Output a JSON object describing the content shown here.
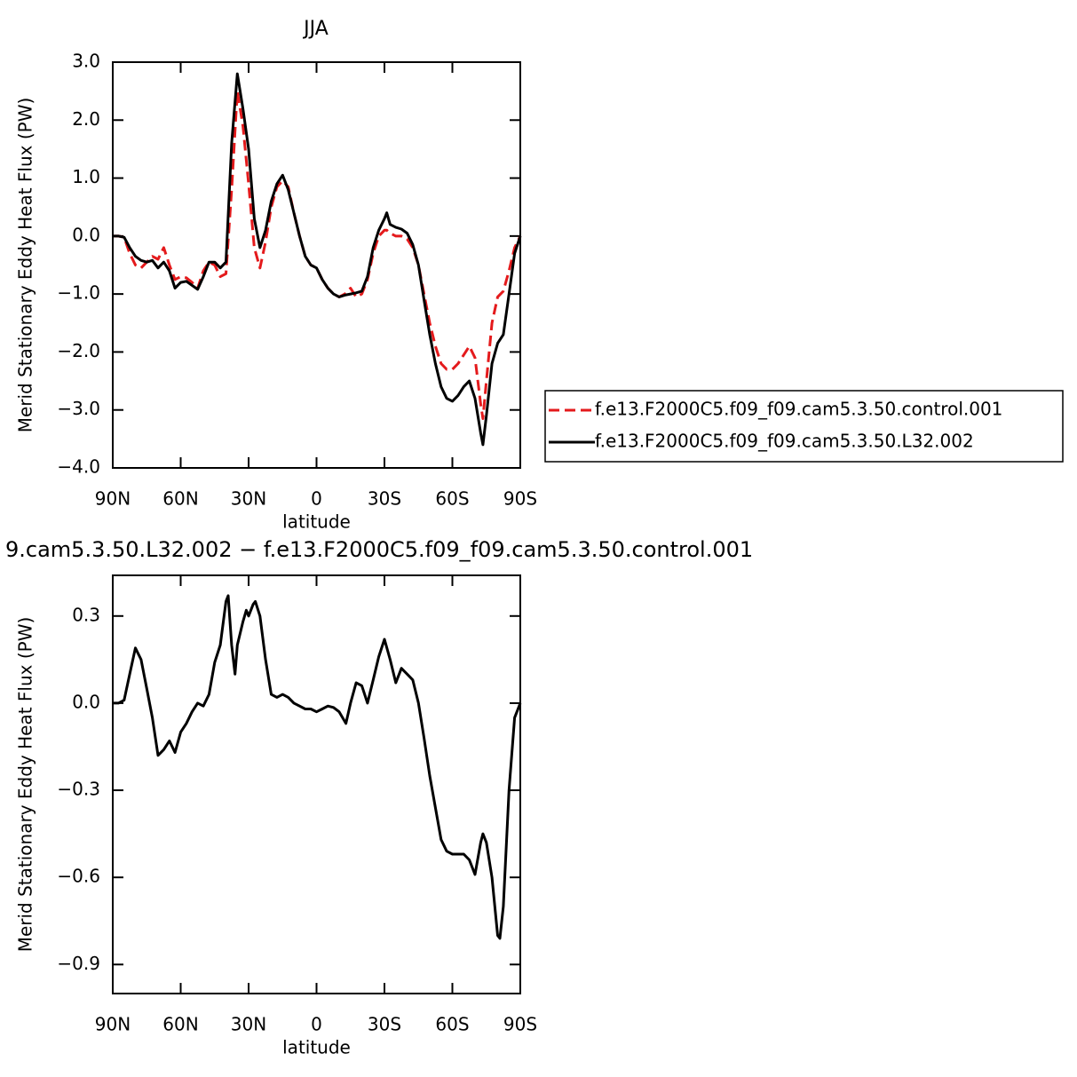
{
  "chart_data": [
    {
      "type": "line",
      "title": "JJA",
      "xlabel": "latitude",
      "ylabel": "Merid Stationary Eddy Heat Flux (PW)",
      "xlim": [
        90,
        -90
      ],
      "xticks": [
        {
          "value": 90,
          "label": "90N"
        },
        {
          "value": 60,
          "label": "60N"
        },
        {
          "value": 30,
          "label": "30N"
        },
        0,
        {
          "value": -30,
          "label": "30S"
        },
        {
          "value": -60,
          "label": "60S"
        },
        {
          "value": -90,
          "label": "90S"
        }
      ],
      "ylim": [
        -4,
        3
      ],
      "yticks": [
        {
          "value": 3,
          "label": "3.0"
        },
        {
          "value": 2,
          "label": "2.0"
        },
        {
          "value": 1,
          "label": "1.0"
        },
        {
          "value": 0,
          "label": "0.0"
        },
        {
          "value": -1,
          "label": "−1.0"
        },
        {
          "value": -2,
          "label": "−2.0"
        },
        {
          "value": -3,
          "label": "−3.0"
        },
        {
          "value": -4,
          "label": "−4.0"
        }
      ],
      "legend": "right",
      "x": [
        90,
        87.5,
        85,
        82.5,
        80,
        77.5,
        75,
        72.5,
        70,
        67.5,
        65,
        62.5,
        60,
        57.5,
        55,
        52.5,
        50,
        47.5,
        45,
        42.5,
        40,
        37.5,
        35,
        32.5,
        30,
        27.5,
        25,
        22.5,
        20,
        17.5,
        15,
        12.5,
        10,
        7.5,
        5,
        2.5,
        0,
        -2.5,
        -5,
        -7.5,
        -10,
        -12.5,
        -15,
        -17.5,
        -20,
        -22.5,
        -25,
        -27.5,
        -30,
        -31,
        -32.5,
        -35,
        -37.5,
        -40,
        -42.5,
        -45,
        -47.5,
        -50,
        -52.5,
        -55,
        -57.5,
        -60,
        -62.5,
        -65,
        -67.5,
        -70,
        -72.5,
        -73.5,
        -75,
        -77.5,
        -80,
        -82.5,
        -85,
        -87.5,
        -90
      ],
      "series": [
        {
          "name": "f.e13.F2000C5.f09_f09.cam5.3.50.control.001",
          "color": "#e41a1c",
          "linestyle": "dashed",
          "values": [
            0,
            0,
            -0.02,
            -0.3,
            -0.5,
            -0.55,
            -0.45,
            -0.35,
            -0.4,
            -0.2,
            -0.5,
            -0.75,
            -0.7,
            -0.72,
            -0.8,
            -0.9,
            -0.6,
            -0.45,
            -0.5,
            -0.7,
            -0.65,
            0.8,
            2.5,
            1.9,
            0.9,
            -0.2,
            -0.55,
            -0.1,
            0.5,
            0.85,
            0.95,
            0.85,
            0.4,
            0,
            -0.35,
            -0.5,
            -0.55,
            -0.75,
            -0.9,
            -1.0,
            -1.05,
            -1.0,
            -0.9,
            -1.05,
            -1.0,
            -0.75,
            -0.3,
            0.0,
            0.1,
            0.1,
            0.05,
            0.0,
            0.0,
            -0.05,
            -0.2,
            -0.5,
            -1.0,
            -1.5,
            -1.9,
            -2.2,
            -2.3,
            -2.3,
            -2.2,
            -2.05,
            -1.9,
            -2.1,
            -2.9,
            -3.15,
            -2.5,
            -1.5,
            -1.05,
            -0.95,
            -0.6,
            -0.2,
            0
          ]
        },
        {
          "name": "f.e13.F2000C5.f09_f09.cam5.3.50.L32.002",
          "color": "#000000",
          "linestyle": "solid",
          "values": [
            0,
            0,
            -0.02,
            -0.2,
            -0.35,
            -0.42,
            -0.45,
            -0.42,
            -0.55,
            -0.45,
            -0.6,
            -0.9,
            -0.8,
            -0.78,
            -0.85,
            -0.92,
            -0.7,
            -0.45,
            -0.45,
            -0.55,
            -0.45,
            1.6,
            2.8,
            2.2,
            1.5,
            0.3,
            -0.2,
            0.1,
            0.6,
            0.9,
            1.05,
            0.8,
            0.4,
            0.0,
            -0.35,
            -0.5,
            -0.55,
            -0.75,
            -0.9,
            -1.0,
            -1.05,
            -1.02,
            -1.0,
            -0.98,
            -0.95,
            -0.7,
            -0.2,
            0.1,
            0.3,
            0.4,
            0.2,
            0.15,
            0.12,
            0.05,
            -0.15,
            -0.5,
            -1.1,
            -1.7,
            -2.2,
            -2.6,
            -2.8,
            -2.85,
            -2.75,
            -2.6,
            -2.5,
            -2.8,
            -3.4,
            -3.6,
            -3.1,
            -2.2,
            -1.85,
            -1.7,
            -1.0,
            -0.3,
            0
          ]
        }
      ]
    },
    {
      "type": "line",
      "title": "9.cam5.3.50.L32.002 − f.e13.F2000C5.f09_f09.cam5.3.50.control.001",
      "xlabel": "latitude",
      "ylabel": "Merid Stationary Eddy Heat Flux (PW)",
      "xlim": [
        90,
        -90
      ],
      "xticks": [
        {
          "value": 90,
          "label": "90N"
        },
        {
          "value": 60,
          "label": "60N"
        },
        {
          "value": 30,
          "label": "30N"
        },
        0,
        {
          "value": -30,
          "label": "30S"
        },
        {
          "value": -60,
          "label": "60S"
        },
        {
          "value": -90,
          "label": "90S"
        }
      ],
      "ylim": [
        -1.0,
        0.44
      ],
      "yticks": [
        0.3,
        {
          "value": 0,
          "label": "0.0"
        },
        {
          "value": -0.3,
          "label": "−0.3"
        },
        {
          "value": -0.6,
          "label": "−0.6"
        },
        {
          "value": -0.9,
          "label": "−0.9"
        }
      ],
      "x": [
        90,
        87.5,
        85,
        82.5,
        80,
        77.5,
        75,
        72.5,
        70,
        67.5,
        65,
        62.5,
        60,
        57.5,
        55,
        52.5,
        50,
        47.5,
        45,
        42.5,
        40,
        39,
        37.5,
        36,
        35,
        32.5,
        31,
        30,
        28,
        27,
        25,
        22.5,
        20,
        17.5,
        15,
        12.5,
        10,
        7.5,
        5,
        2.5,
        0,
        -2.5,
        -5,
        -7.5,
        -10,
        -13,
        -15,
        -17.5,
        -20,
        -22.5,
        -25,
        -27.5,
        -30,
        -32.5,
        -35,
        -37.5,
        -40,
        -42.5,
        -45,
        -47.5,
        -50,
        -52.5,
        -55,
        -57.5,
        -60,
        -62.5,
        -65,
        -67.5,
        -70,
        -72.5,
        -73.5,
        -75,
        -77.5,
        -80,
        -81,
        -82.5,
        -85,
        -87.5,
        -90
      ],
      "series": [
        {
          "color": "#000000",
          "linestyle": "solid",
          "values": [
            0,
            0,
            0.01,
            0.1,
            0.19,
            0.15,
            0.05,
            -0.05,
            -0.18,
            -0.16,
            -0.13,
            -0.17,
            -0.1,
            -0.07,
            -0.03,
            0.0,
            -0.01,
            0.03,
            0.14,
            0.2,
            0.35,
            0.37,
            0.2,
            0.1,
            0.2,
            0.28,
            0.32,
            0.3,
            0.34,
            0.35,
            0.3,
            0.15,
            0.03,
            0.02,
            0.03,
            0.02,
            0,
            -0.01,
            -0.02,
            -0.02,
            -0.03,
            -0.02,
            -0.01,
            -0.015,
            -0.03,
            -0.07,
            0.0,
            0.07,
            0.06,
            0.0,
            0.08,
            0.16,
            0.22,
            0.15,
            0.07,
            0.12,
            0.1,
            0.08,
            0,
            -0.12,
            -0.25,
            -0.36,
            -0.47,
            -0.51,
            -0.52,
            -0.52,
            -0.52,
            -0.54,
            -0.59,
            -0.48,
            -0.45,
            -0.48,
            -0.6,
            -0.8,
            -0.81,
            -0.7,
            -0.3,
            -0.05,
            0
          ]
        }
      ]
    }
  ]
}
